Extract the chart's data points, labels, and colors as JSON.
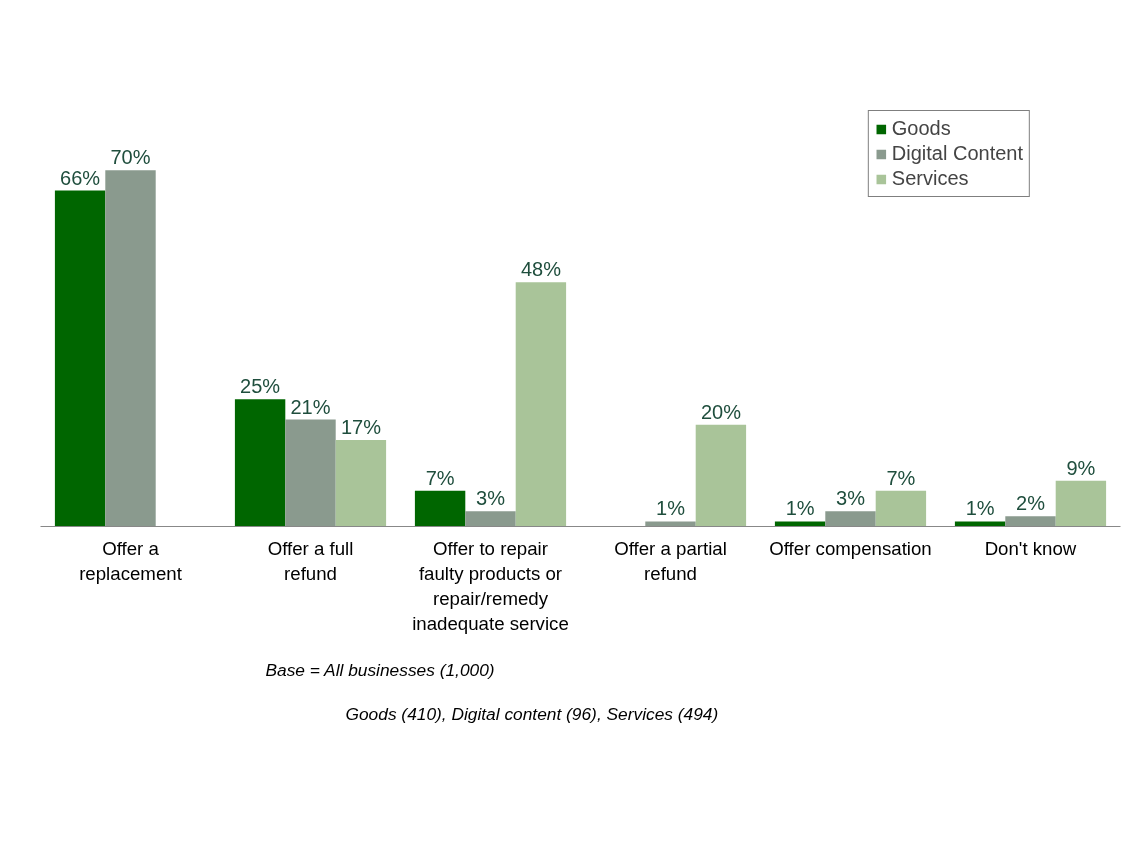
{
  "chart_data": {
    "type": "bar",
    "categories": [
      "Offer a replacement",
      "Offer a full refund",
      "Offer to repair faulty products or repair/remedy inadequate service",
      "Offer a partial refund",
      "Offer compensation",
      "Don't know"
    ],
    "series": [
      {
        "name": "Goods",
        "color": "#006600",
        "values": [
          66,
          25,
          7,
          null,
          1,
          1
        ],
        "value_labels": [
          "66%",
          "25%",
          "7%",
          null,
          "1%",
          "1%"
        ]
      },
      {
        "name": "Digital Content",
        "color": "#8a9a8e",
        "values": [
          70,
          21,
          3,
          1,
          3,
          2
        ],
        "value_labels": [
          "70%",
          "21%",
          "3%",
          "1%",
          "3%",
          "2%"
        ]
      },
      {
        "name": "Services",
        "color": "#a9c499",
        "values": [
          null,
          17,
          48,
          20,
          7,
          9
        ],
        "value_labels": [
          null,
          "17%",
          "48%",
          "20%",
          "7%",
          "9%"
        ]
      }
    ],
    "relative": false,
    "legend": "top right",
    "grid": false,
    "annotations": [
      "Base = All businesses (1,000)",
      "Goods (410), Digital content (96), Services (494)"
    ]
  }
}
